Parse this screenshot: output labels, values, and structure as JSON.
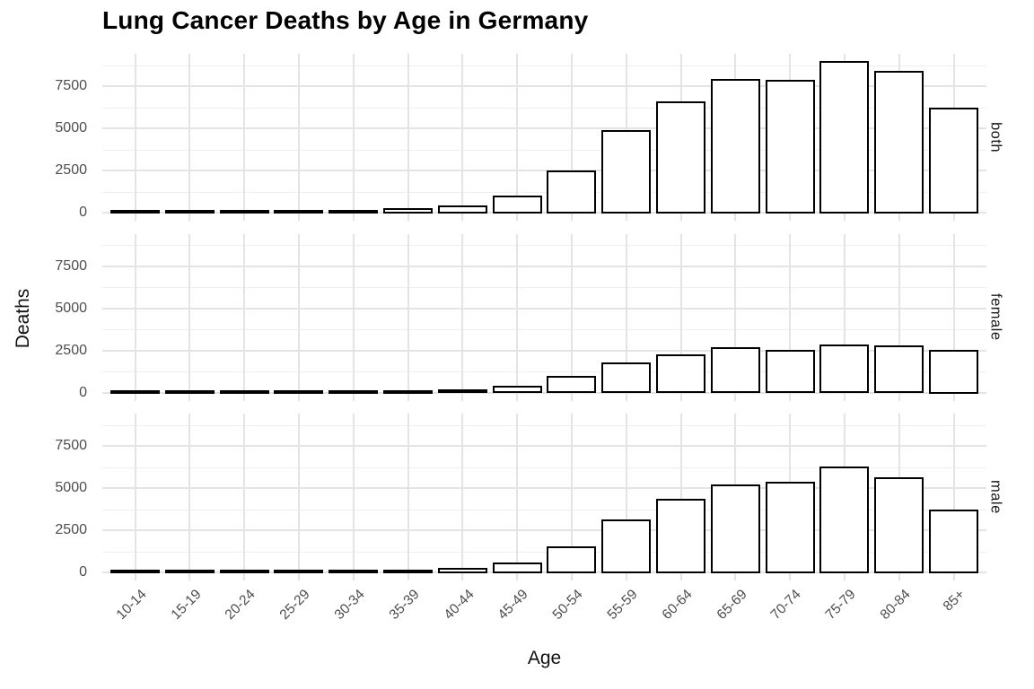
{
  "title": "Lung Cancer Deaths by Age in Germany",
  "chart_data": {
    "type": "bar",
    "title": "Lung Cancer Deaths by Age in Germany",
    "xlabel": "Age",
    "ylabel": "Deaths",
    "facet_labels": [
      "both",
      "female",
      "male"
    ],
    "categories": [
      "10-14",
      "15-19",
      "20-24",
      "25-29",
      "30-34",
      "35-39",
      "40-44",
      "45-49",
      "50-54",
      "55-59",
      "60-64",
      "65-69",
      "70-74",
      "75-79",
      "80-84",
      "85+"
    ],
    "series": [
      {
        "name": "both",
        "values": [
          10,
          20,
          20,
          30,
          90,
          200,
          390,
          950,
          2450,
          4850,
          6550,
          7850,
          7800,
          8950,
          8350,
          6150
        ]
      },
      {
        "name": "female",
        "values": [
          5,
          10,
          10,
          15,
          40,
          90,
          150,
          360,
          950,
          1750,
          2200,
          2650,
          2450,
          2800,
          2750,
          2500
        ]
      },
      {
        "name": "male",
        "values": [
          5,
          10,
          10,
          15,
          50,
          110,
          240,
          540,
          1500,
          3080,
          4300,
          5150,
          5300,
          6200,
          5600,
          3650
        ]
      }
    ],
    "yticks": [
      0,
      2500,
      5000,
      7500
    ],
    "yticks_minor": [
      1250,
      3750,
      6250,
      8750
    ],
    "ylim": [
      0,
      9400
    ],
    "grid": "major horizontal + minor horizontal + major vertical at category centers",
    "legend_position": "none",
    "style": {
      "bar_fill": "#ffffff",
      "bar_stroke": "#000000",
      "grid_major_color": "#e4e4e4",
      "grid_minor_color": "#efefef",
      "tick_label_color": "#4d4d4d",
      "title_color": "#000000",
      "panel_background": "#ffffff"
    }
  }
}
